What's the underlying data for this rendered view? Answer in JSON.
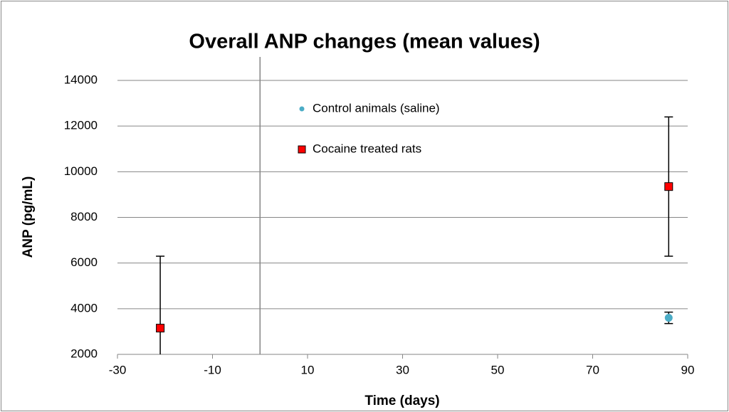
{
  "chart_data": {
    "type": "scatter",
    "title": "Overall ANP changes (mean values)",
    "x_label": "Time (days)",
    "y_label": "ANP (pg/mL)",
    "xlim": [
      -30,
      90
    ],
    "xticks": [
      -30,
      -10,
      10,
      30,
      50,
      70,
      90
    ],
    "ylim": [
      2000,
      14000
    ],
    "yticks": [
      2000,
      4000,
      6000,
      8000,
      10000,
      12000,
      14000
    ],
    "grid": true,
    "y_axis_crosses_x": 0,
    "legend": "top-center",
    "series": [
      {
        "name": "Control animals  (saline)",
        "color": "#4bacc6",
        "marker": "circle",
        "x": [
          86
        ],
        "values": [
          3600
        ],
        "errors": [
          250
        ]
      },
      {
        "name": "Cocaine treated rats",
        "color": "#ff0000",
        "marker": "square",
        "x": [
          -21,
          86
        ],
        "values": [
          3150,
          9350
        ],
        "errors": [
          3150,
          3050
        ]
      }
    ]
  }
}
